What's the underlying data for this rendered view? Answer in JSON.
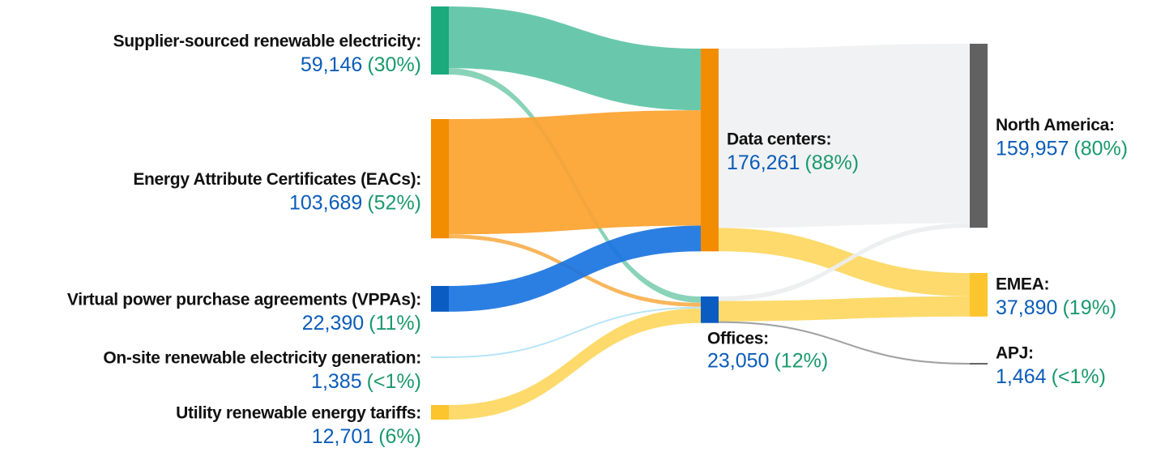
{
  "chart_data": {
    "type": "sankey",
    "nodes": [
      {
        "label": "Supplier-sourced renewable electricity:",
        "value": 59146,
        "value_label": "59,146",
        "share_label": "(30%)",
        "color": "#1aaa7c"
      },
      {
        "label": "Energy Attribute Certificates (EACs):",
        "value": 103689,
        "value_label": "103,689",
        "share_label": "(52%)",
        "color": "#f28c00"
      },
      {
        "label": "Virtual power purchase agreements (VPPAs):",
        "value": 22390,
        "value_label": "22,390",
        "share_label": "(11%)",
        "color": "#0a5cc2"
      },
      {
        "label": "On-site renewable electricity generation:",
        "value": 1385,
        "value_label": "1,385",
        "share_label": "(<1%)",
        "color": "#aee2f7"
      },
      {
        "label": "Utility renewable energy tariffs:",
        "value": 12701,
        "value_label": "12,701",
        "share_label": "(6%)",
        "color": "#fcc42d"
      },
      {
        "label": "Data centers:",
        "value": 176261,
        "value_label": "176,261",
        "share_label": "(88%)",
        "color": "#f28c00"
      },
      {
        "label": "Offices:",
        "value": 23050,
        "value_label": "23,050",
        "share_label": "(12%)",
        "color": "#0a5cc2"
      },
      {
        "label": "North America:",
        "value": 159957,
        "value_label": "159,957",
        "share_label": "(80%)",
        "color": "#616161"
      },
      {
        "label": "EMEA:",
        "value": 37890,
        "value_label": "37,890",
        "share_label": "(19%)",
        "color": "#fcc42d"
      },
      {
        "label": "APJ:",
        "value": 1464,
        "value_label": "1,464",
        "share_label": "(<1%)",
        "color": "#666666"
      }
    ],
    "links": [
      {
        "source": 0,
        "target": 5,
        "value": 53646,
        "color": "#5cc3a5"
      },
      {
        "source": 0,
        "target": 6,
        "value": 5500,
        "color": "#7fcfb2"
      },
      {
        "source": 1,
        "target": 5,
        "value": 100225,
        "color": "#fca22e"
      },
      {
        "source": 1,
        "target": 6,
        "value": 3464,
        "color": "#f8b04e"
      },
      {
        "source": 2,
        "target": 5,
        "value": 22390,
        "color": "#1a74e0"
      },
      {
        "source": 3,
        "target": 6,
        "value": 1385,
        "color": "#aee2f7"
      },
      {
        "source": 4,
        "target": 6,
        "value": 12701,
        "color": "#fdd75e"
      },
      {
        "source": 5,
        "target": 7,
        "value": 155957,
        "color": "#f0f1f2"
      },
      {
        "source": 5,
        "target": 8,
        "value": 20304,
        "color": "#fdd75e"
      },
      {
        "source": 6,
        "target": 7,
        "value": 4000,
        "color": "#eceeef"
      },
      {
        "source": 6,
        "target": 8,
        "value": 17586,
        "color": "#fdd75e"
      },
      {
        "source": 6,
        "target": 9,
        "value": 1464,
        "color": "#999999"
      }
    ]
  }
}
